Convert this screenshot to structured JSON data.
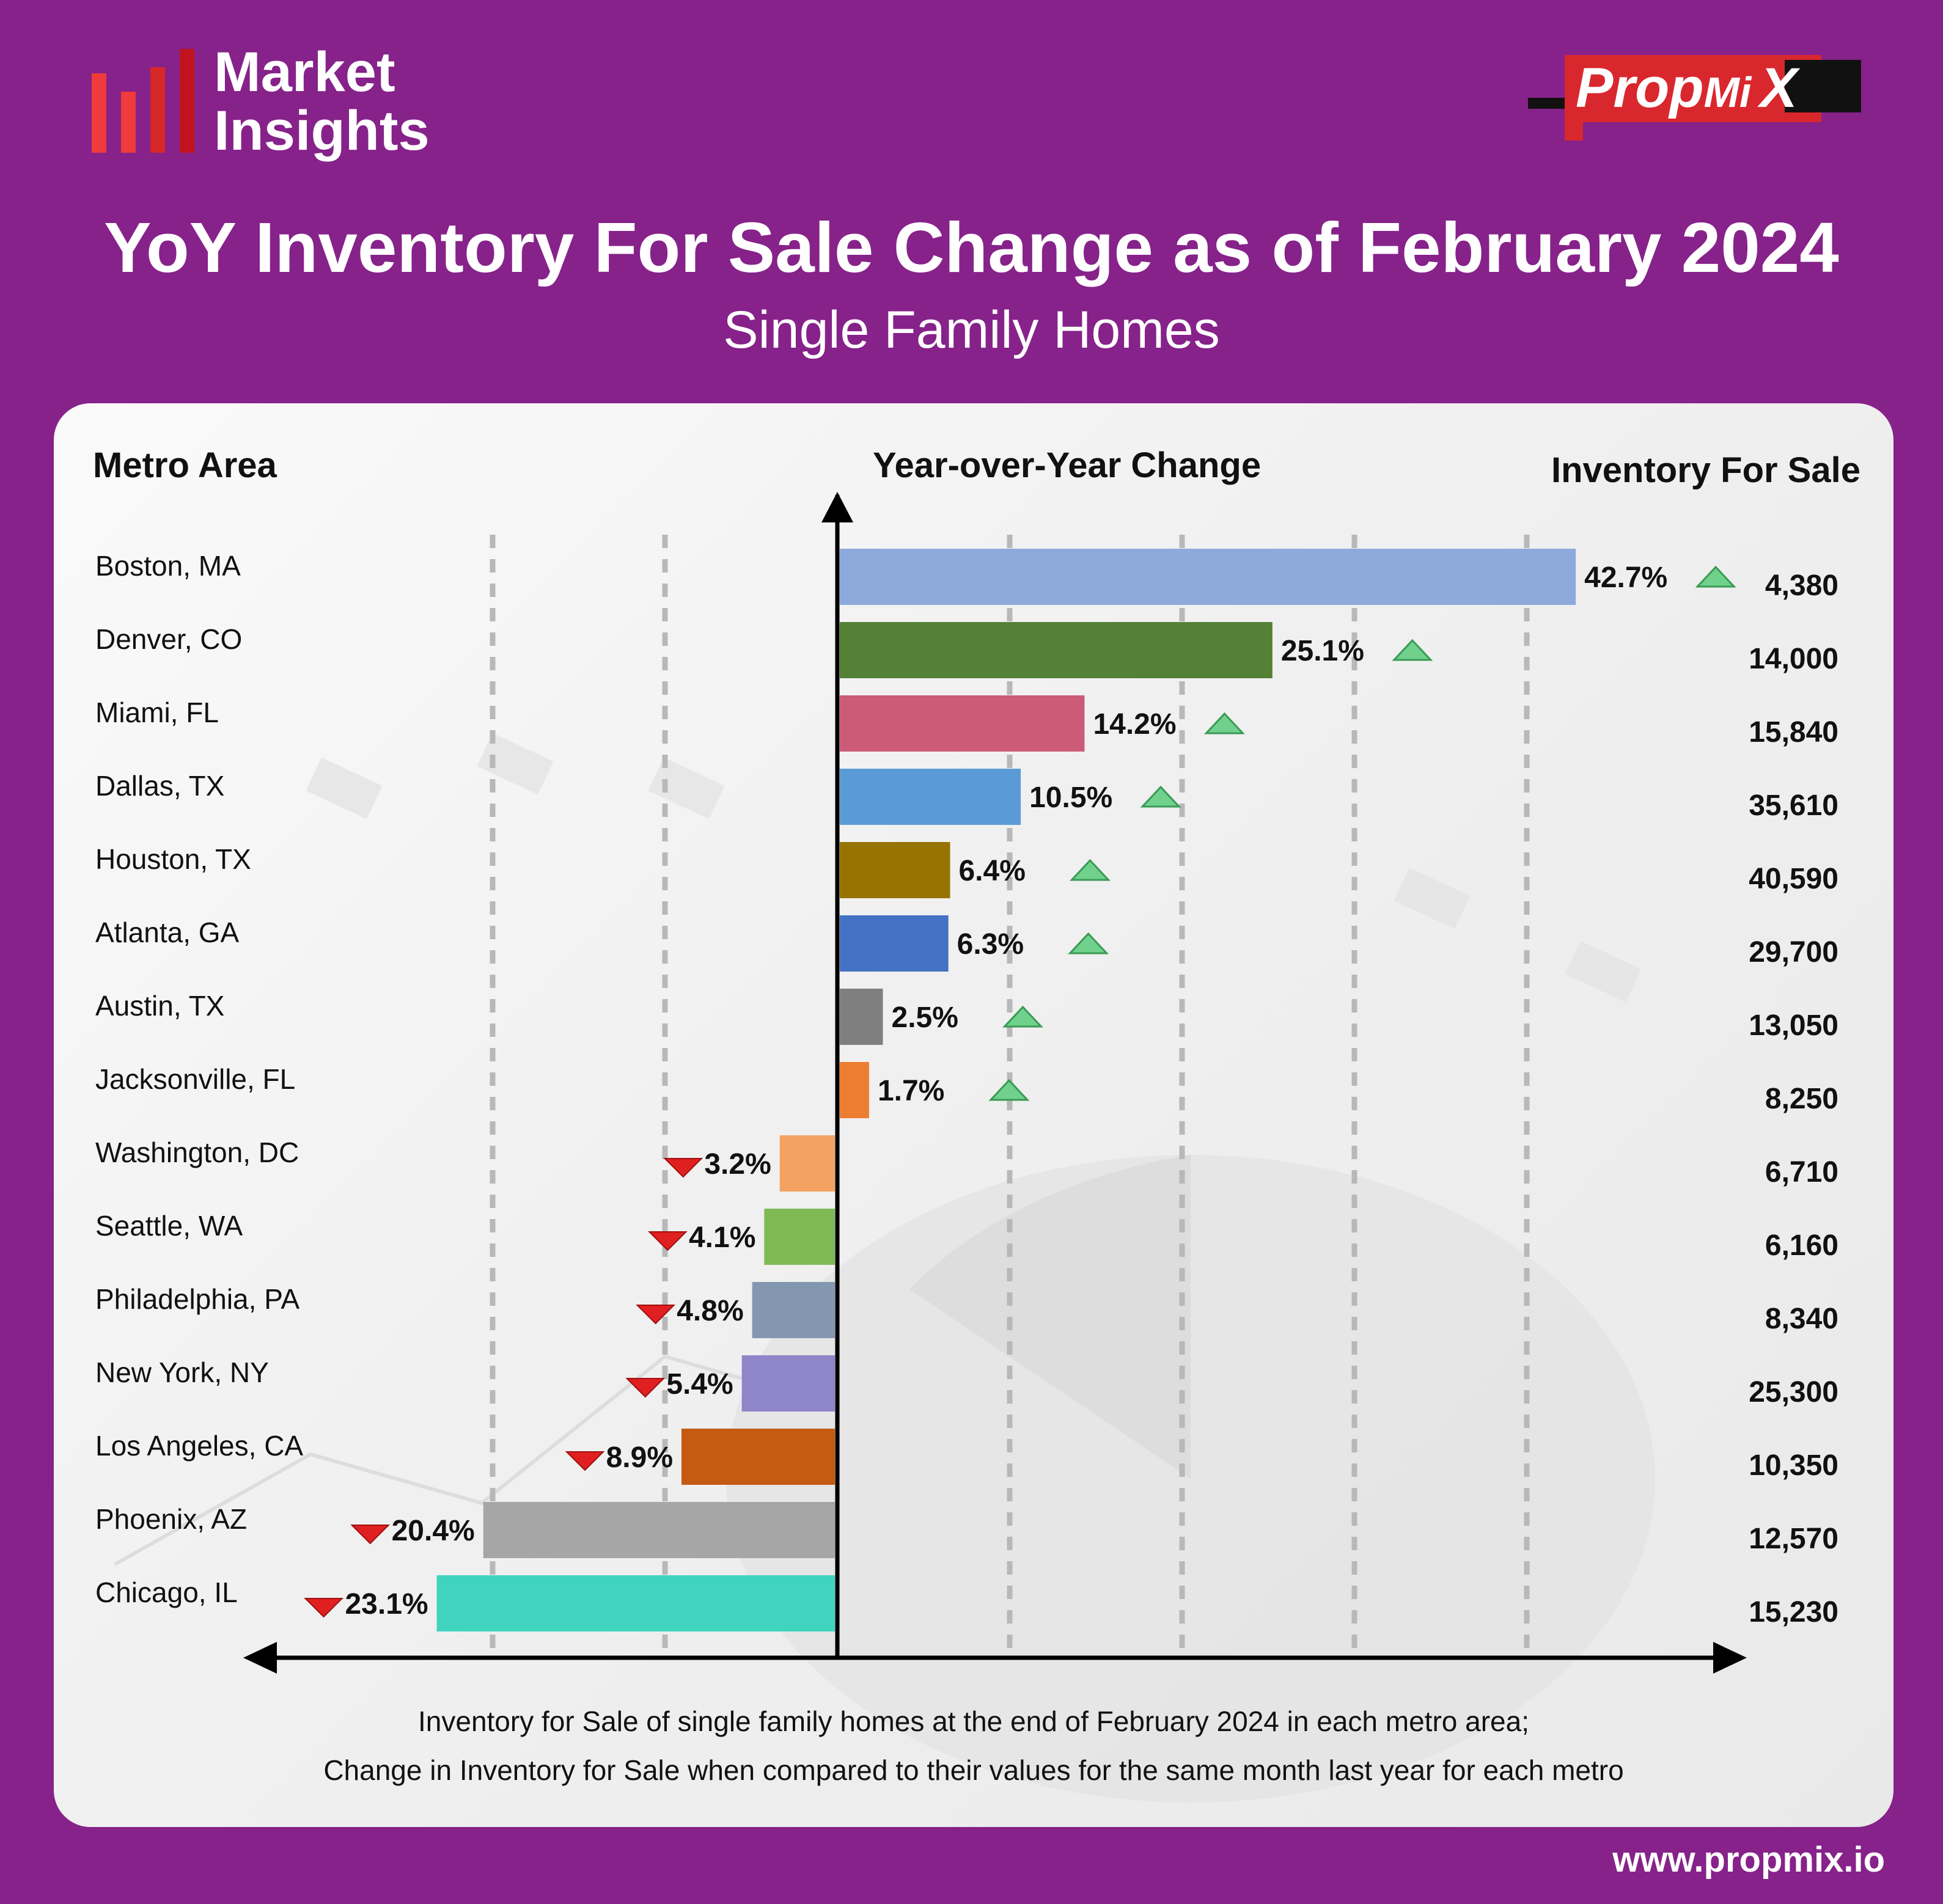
{
  "brand": {
    "line1": "Market",
    "line2": "Insights"
  },
  "logo": {
    "prefix": "Prop",
    "mid": "Mi",
    "suffix": "X"
  },
  "header": {
    "title": "YoY Inventory For Sale Change as of February 2024",
    "subtitle": "Single Family Homes"
  },
  "columns": {
    "metro": "Metro Area",
    "change": "Year-over-Year Change",
    "inventory": "Inventory For Sale"
  },
  "footnote": {
    "line1": "Inventory for Sale of single family homes at the end of February 2024 in each metro area;",
    "line2": "Change in Inventory for Sale when compared to their values for the same month last year for each metro"
  },
  "website": "www.propmix.io",
  "colors": {
    "background": "#86228a",
    "up": "#6fd18c",
    "down": "#e02020"
  },
  "chart_data": {
    "type": "bar",
    "orientation": "horizontal",
    "title": "YoY Inventory For Sale Change as of February 2024",
    "subtitle": "Single Family Homes",
    "xlabel": "Year-over-Year Change",
    "categories": [
      "Boston, MA",
      "Denver, CO",
      "Miami, FL",
      "Dallas, TX",
      "Houston, TX",
      "Atlanta, GA",
      "Austin, TX",
      "Jacksonville, FL",
      "Washington, DC",
      "Seattle, WA",
      "Philadelphia, PA",
      "New York, NY",
      "Los Angeles, CA",
      "Phoenix, AZ",
      "Chicago, IL"
    ],
    "values": [
      42.7,
      25.1,
      14.2,
      10.5,
      6.4,
      6.3,
      2.5,
      1.7,
      -3.2,
      -4.1,
      -4.8,
      -5.4,
      -8.9,
      -20.4,
      -23.1
    ],
    "value_labels": [
      "42.7%",
      "25.1%",
      "14.2%",
      "10.5%",
      "6.4%",
      "6.3%",
      "2.5%",
      "1.7%",
      "3.2%",
      "4.1%",
      "4.8%",
      "5.4%",
      "8.9%",
      "20.4%",
      "23.1%"
    ],
    "inventory": [
      "4,380",
      "14,000",
      "15,840",
      "35,610",
      "40,590",
      "29,700",
      "13,050",
      "8,250",
      "6,710",
      "6,160",
      "8,340",
      "25,300",
      "10,350",
      "12,570",
      "15,230"
    ],
    "bar_colors": [
      "#8eaadc",
      "#538135",
      "#cc5b78",
      "#5b9bd5",
      "#977400",
      "#4472c4",
      "#7f7f7f",
      "#ed7d31",
      "#f4a261",
      "#7fba55",
      "#8497b0",
      "#8e86c8",
      "#c55a11",
      "#a6a6a6",
      "#40d4bf"
    ],
    "xlim": [
      -25,
      44
    ],
    "grid": true
  }
}
